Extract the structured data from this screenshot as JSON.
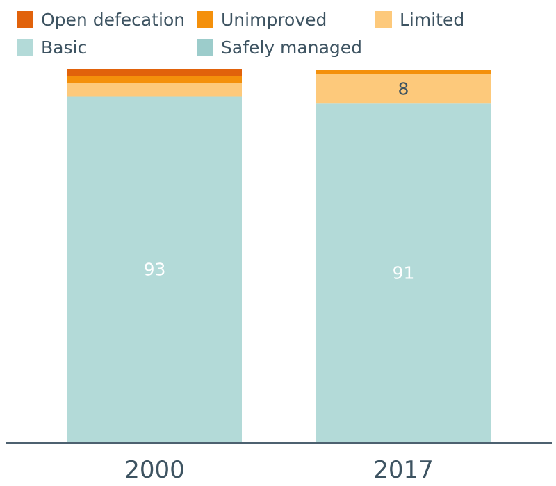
{
  "chart_data": {
    "type": "bar",
    "stacked": true,
    "categories": [
      "2000",
      "2017"
    ],
    "series": [
      {
        "name": "Safely managed",
        "color": "#9ccccb",
        "values": [
          0,
          0
        ]
      },
      {
        "name": "Basic",
        "color": "#b3dad8",
        "values": [
          93,
          91
        ]
      },
      {
        "name": "Limited",
        "color": "#fdc97b",
        "values": [
          3.5,
          8
        ]
      },
      {
        "name": "Unimproved",
        "color": "#f4900b",
        "values": [
          2,
          1
        ]
      },
      {
        "name": "Open defecation",
        "color": "#e1620b",
        "values": [
          1.8,
          0
        ]
      }
    ],
    "data_labels": [
      {
        "series": "Basic",
        "category": "2000",
        "text": "93",
        "color": "#ffffff"
      },
      {
        "series": "Basic",
        "category": "2017",
        "text": "91",
        "color": "#ffffff"
      },
      {
        "series": "Limited",
        "category": "2017",
        "text": "8",
        "color": "#3d5361"
      }
    ],
    "legend": {
      "placement": "top",
      "order": [
        "Open defecation",
        "Unimproved",
        "Limited",
        "Basic",
        "Safely managed"
      ]
    },
    "ylim": [
      0,
      100
    ],
    "grid": false,
    "title": "",
    "xlabel": "",
    "ylabel": ""
  }
}
